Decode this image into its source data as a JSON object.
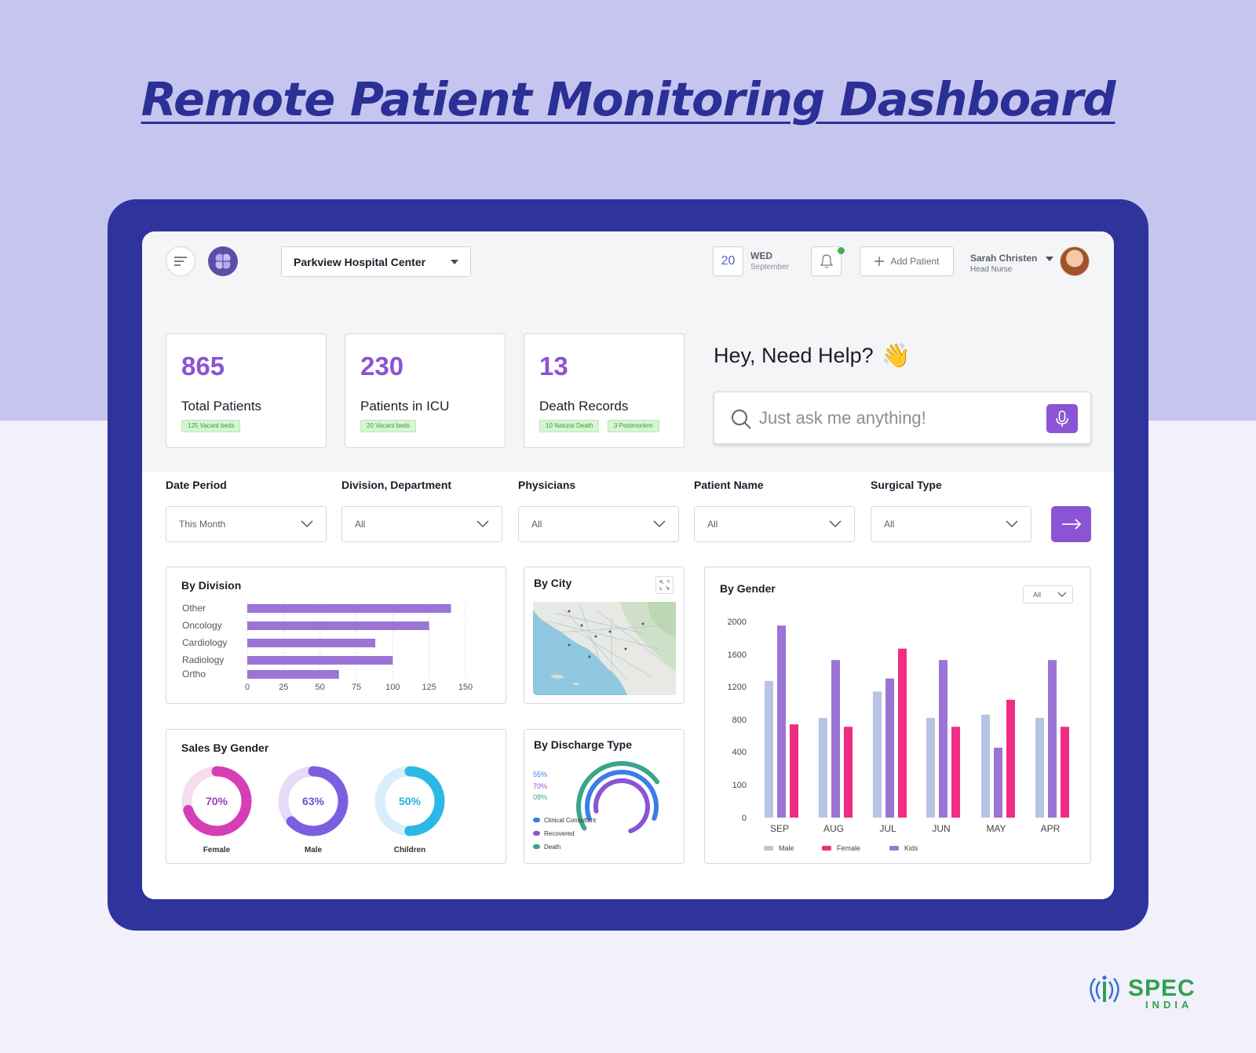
{
  "page": {
    "headline": "Remote Patient Monitoring Dashboard"
  },
  "topbar": {
    "hospital": "Parkview Hospital Center",
    "date_number": "20",
    "day": "WED",
    "month": "September",
    "add_patient_label": "Add Patient",
    "user_name": "Sarah Christen",
    "user_role": "Head Nurse"
  },
  "stats": [
    {
      "value": "865",
      "label": "Total Patients",
      "tags": [
        "125 Vacant beds"
      ]
    },
    {
      "value": "230",
      "label": "Patients in ICU",
      "tags": [
        "20 Vacant beds"
      ]
    },
    {
      "value": "13",
      "label": "Death Records",
      "tags": [
        "10 Natural Death",
        "3 Postmortem"
      ]
    }
  ],
  "help": {
    "title": "Hey, Need Help?",
    "emoji": "👋",
    "placeholder": "Just ask me anything!"
  },
  "filters": [
    {
      "label": "Date Period",
      "value": "This Month"
    },
    {
      "label": "Division, Department",
      "value": "All"
    },
    {
      "label": "Physicians",
      "value": "All"
    },
    {
      "label": "Patient Name",
      "value": "All"
    },
    {
      "label": "Surgical Type",
      "value": "All"
    }
  ],
  "panels": {
    "division_title": "By Division",
    "city_title": "By City",
    "gender_title": "By Gender",
    "gender_filter": "All",
    "sales_title": "Sales By Gender",
    "discharge_title": "By Discharge Type"
  },
  "colors": {
    "accent": "#8b54d4",
    "male": "#b7c4e6",
    "female": "#ef2d84",
    "kids": "#9b74d6",
    "headline": "#2b2f96",
    "frame": "#2e349c"
  },
  "chart_data": [
    {
      "type": "bar",
      "orientation": "horizontal",
      "title": "By Division",
      "categories": [
        "Other",
        "Oncology",
        "Cardiology",
        "Radiology",
        "Ortho"
      ],
      "values": [
        140,
        125,
        88,
        100,
        63
      ],
      "xticks": [
        0,
        25,
        50,
        75,
        100,
        125,
        150
      ],
      "xlim": [
        0,
        150
      ],
      "color": "#9b74d6",
      "grid": true
    },
    {
      "type": "bar",
      "title": "By Gender",
      "categories": [
        "SEP",
        "AUG",
        "JUL",
        "JUN",
        "MAY",
        "APR"
      ],
      "yticks": [
        "2000",
        "1600",
        "1200",
        "800",
        "400",
        "100",
        "0"
      ],
      "series": [
        {
          "name": "Male",
          "color": "#b7c4e6",
          "values": [
            1270,
            820,
            1140,
            820,
            860,
            820
          ]
        },
        {
          "name": "Kids",
          "color": "#9b74d6",
          "values": [
            1950,
            1530,
            1300,
            1530,
            450,
            1530
          ]
        },
        {
          "name": "Female",
          "color": "#ef2d84",
          "values": [
            740,
            710,
            1670,
            710,
            1040,
            710
          ]
        }
      ],
      "legend": [
        "Male",
        "Female",
        "Kids"
      ],
      "legend_position": "bottom"
    },
    {
      "type": "pie",
      "title": "Sales By Gender",
      "items": [
        {
          "label": "Female",
          "percent": 70,
          "display": "70%",
          "color": "#d63fb4",
          "text_color": "#9b3fc0"
        },
        {
          "label": "Male",
          "percent": 63,
          "display": "63%",
          "color": "#7c5fe0",
          "text_color": "#6b4fd0"
        },
        {
          "label": "Children",
          "percent": 50,
          "display": "50%",
          "color": "#2bb8e6",
          "text_color": "#22b3da"
        }
      ]
    },
    {
      "type": "pie",
      "title": "By Discharge Type",
      "items": [
        {
          "label": "Clinical Consultant",
          "percent": 55,
          "display": "55%",
          "color": "#3b7ee6"
        },
        {
          "label": "Recovered",
          "percent": 70,
          "display": "70%",
          "color": "#8b54d4"
        },
        {
          "label": "Death",
          "percent": 8,
          "display": "08%",
          "color": "#3aa58a"
        }
      ]
    }
  ]
}
